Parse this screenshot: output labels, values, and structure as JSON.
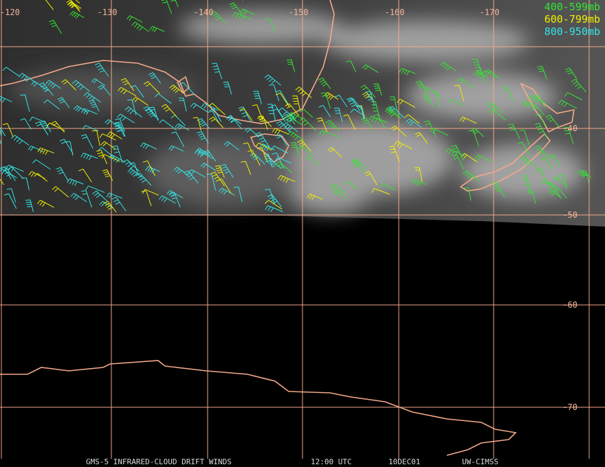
{
  "grid": {
    "longitudes": [
      "-120",
      "-130",
      "-140",
      "-150",
      "-160",
      "-170"
    ],
    "latitudes": [
      "-40",
      "-50",
      "-60",
      "-70"
    ]
  },
  "legend": {
    "items": [
      {
        "text": "400-599mb",
        "color": "#33e633"
      },
      {
        "text": "600-799mb",
        "color": "#f0f000"
      },
      {
        "text": "800-950mb",
        "color": "#33e6e6"
      }
    ]
  },
  "footer": {
    "product": "GMS-5 INFRARED-CLOUD DRIFT WINDS",
    "time": "12:00 UTC",
    "date": "10DEC01",
    "source": "UW-CIMSS"
  }
}
